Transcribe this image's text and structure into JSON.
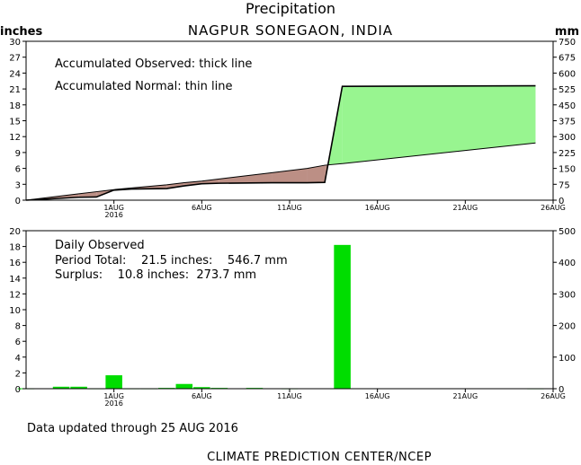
{
  "header": {
    "title": "Precipitation",
    "subtitle": "NAGPUR SONEGAON, INDIA",
    "left_unit": "inches",
    "right_unit": "mm"
  },
  "chart_data": [
    {
      "type": "line",
      "legend": [
        "Accumulated Observed: thick line",
        "Accumulated Normal: thin line"
      ],
      "x_ticks": [
        "1AUG",
        "6AUG",
        "11AUG",
        "16AUG",
        "21AUG",
        "26AUG"
      ],
      "x_year": "2016",
      "y_ticks": [
        "0",
        "3",
        "6",
        "9",
        "12",
        "15",
        "18",
        "21",
        "24",
        "27",
        "30"
      ],
      "y2_ticks": [
        "0",
        "75",
        "150",
        "225",
        "300",
        "375",
        "450",
        "525",
        "600",
        "675",
        "750"
      ],
      "ylim": [
        0,
        30
      ],
      "fill_colors": {
        "surplus": "#98f590",
        "deficit": "#bc8f85"
      },
      "x": [
        "2016-07-27",
        "2016-07-30",
        "2016-07-31",
        "2016-08-01",
        "2016-08-02",
        "2016-08-04",
        "2016-08-05",
        "2016-08-06",
        "2016-08-07",
        "2016-08-10",
        "2016-08-12",
        "2016-08-13",
        "2016-08-14",
        "2016-08-25"
      ],
      "series": [
        {
          "values": [
            0.0,
            0.55,
            0.6,
            1.9,
            2.1,
            2.2,
            2.7,
            3.1,
            3.2,
            3.3,
            3.3,
            3.35,
            21.5,
            21.6
          ]
        },
        {
          "values": [
            0.0,
            1.2,
            1.6,
            2.0,
            2.3,
            2.9,
            3.3,
            3.6,
            4.0,
            5.2,
            6.0,
            6.6,
            6.9,
            10.8
          ]
        }
      ]
    },
    {
      "type": "bar",
      "legend": [
        "Daily Observed",
        "Period Total:    21.5 inches:    546.7 mm",
        "Surplus:    10.8 inches:  273.7 mm"
      ],
      "x_ticks": [
        "1AUG",
        "6AUG",
        "11AUG",
        "16AUG",
        "21AUG",
        "26AUG"
      ],
      "x_year": "2016",
      "y_ticks": [
        "0",
        "2",
        "4",
        "6",
        "8",
        "10",
        "12",
        "14",
        "16",
        "18",
        "20"
      ],
      "y2_ticks": [
        "0",
        "100",
        "200",
        "300",
        "400",
        "500"
      ],
      "ylim": [
        0,
        20
      ],
      "bar_color": "#00dd00",
      "x": [
        "2016-07-27",
        "2016-07-29",
        "2016-07-30",
        "2016-07-31",
        "2016-08-01",
        "2016-08-02",
        "2016-08-03",
        "2016-08-04",
        "2016-08-05",
        "2016-08-06",
        "2016-08-07",
        "2016-08-09",
        "2016-08-11",
        "2016-08-14",
        "2016-08-25"
      ],
      "values": [
        0.05,
        0.25,
        0.25,
        0.05,
        1.7,
        0.05,
        0.05,
        0.1,
        0.6,
        0.2,
        0.1,
        0.1,
        0.05,
        18.2,
        0.05
      ]
    }
  ],
  "footer": {
    "updated": "Data updated through 25 AUG 2016",
    "credit": "CLIMATE PREDICTION CENTER/NCEP"
  }
}
